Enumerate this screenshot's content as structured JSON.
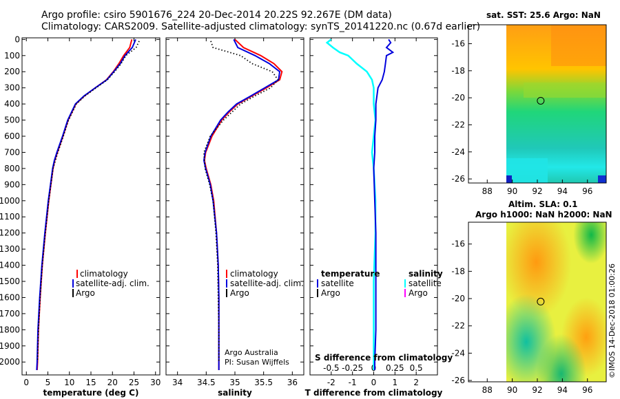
{
  "header": {
    "line1": "Argo profile: csiro 5901676_224 20-Dec-2014 20.22S 92.267E (DM data)",
    "line2": "Climatology: CARS2009. Satellite-adjusted climatology: synTS_20141220.nc (0.67d earlier)"
  },
  "colors": {
    "climatology": "#ff0000",
    "satellite": "#0000dd",
    "argo": "#000000",
    "satellite_s": "#00ffff",
    "argo_s": "#ff00ff"
  },
  "chart_data": [
    {
      "type": "line",
      "name": "temperature",
      "xlabel": "temperature (deg C)",
      "xlim": [
        -1,
        31
      ],
      "xticks": [
        0,
        5,
        10,
        15,
        20,
        25,
        30
      ],
      "ylim": [
        2080,
        -10
      ],
      "yticks": [
        0,
        100,
        200,
        300,
        400,
        500,
        600,
        700,
        800,
        900,
        1000,
        1100,
        1200,
        1300,
        1400,
        1500,
        1600,
        1700,
        1800,
        1900,
        2000
      ],
      "legend": [
        "climatology",
        "satellite-adj. clim.",
        "Argo"
      ],
      "series": [
        {
          "name": "climatology",
          "depth": [
            0,
            50,
            100,
            150,
            200,
            250,
            300,
            350,
            400,
            500,
            600,
            700,
            750,
            800,
            900,
            1000,
            1200,
            1400,
            1600,
            1800,
            2000,
            2050
          ],
          "values": [
            24.5,
            24.0,
            22.6,
            21.5,
            20.2,
            18.6,
            16.0,
            13.5,
            11.5,
            9.7,
            8.5,
            7.2,
            6.6,
            6.2,
            5.7,
            5.2,
            4.4,
            3.7,
            3.2,
            2.8,
            2.6,
            2.5
          ]
        },
        {
          "name": "satellite-adj. clim.",
          "depth": [
            0,
            50,
            100,
            150,
            200,
            250,
            300,
            350,
            400,
            500,
            600,
            700,
            750,
            800,
            900,
            1000,
            1200,
            1400,
            1600,
            1800,
            2000,
            2050
          ],
          "values": [
            25.4,
            24.6,
            22.9,
            21.8,
            20.3,
            18.7,
            16.0,
            13.4,
            11.4,
            9.6,
            8.4,
            7.1,
            6.5,
            6.1,
            5.6,
            5.1,
            4.3,
            3.6,
            3.1,
            2.7,
            2.5,
            2.4
          ]
        },
        {
          "name": "Argo",
          "depth": [
            10,
            50,
            100,
            150,
            200,
            250,
            300,
            350,
            400,
            500,
            600,
            700,
            800,
            900,
            1000,
            1200,
            1400,
            1600,
            1800,
            2000
          ],
          "values": [
            26.2,
            25.5,
            23.1,
            22.0,
            20.5,
            18.8,
            16.2,
            13.6,
            11.6,
            9.8,
            8.6,
            7.3,
            6.2,
            5.7,
            5.2,
            4.4,
            3.7,
            3.2,
            2.8,
            2.6
          ]
        }
      ]
    },
    {
      "type": "line",
      "name": "salinity",
      "xlabel": "salinity",
      "xlim": [
        33.8,
        36.2
      ],
      "xticks": [
        34,
        34.5,
        35,
        35.5,
        36
      ],
      "xticklabels": [
        "34",
        "34.5",
        "35",
        "35.5",
        "36"
      ],
      "ylim": [
        2080,
        -10
      ],
      "legend": [
        "climatology",
        "satellite-adj. clim.",
        "Argo"
      ],
      "series": [
        {
          "name": "climatology",
          "depth": [
            0,
            50,
            100,
            150,
            200,
            250,
            300,
            350,
            400,
            450,
            500,
            600,
            700,
            750,
            800,
            900,
            1000,
            1200,
            1400,
            1600,
            1800,
            2000,
            2050
          ],
          "values": [
            35.0,
            35.15,
            35.45,
            35.68,
            35.82,
            35.78,
            35.55,
            35.3,
            35.05,
            34.9,
            34.77,
            34.6,
            34.49,
            34.47,
            34.5,
            34.58,
            34.63,
            34.68,
            34.71,
            34.72,
            34.72,
            34.72,
            34.72
          ]
        },
        {
          "name": "satellite-adj. clim.",
          "depth": [
            0,
            50,
            100,
            150,
            200,
            250,
            300,
            350,
            400,
            450,
            500,
            600,
            700,
            750,
            800,
            900,
            1000,
            1200,
            1400,
            1600,
            1800,
            2000,
            2050
          ],
          "values": [
            34.98,
            35.05,
            35.35,
            35.6,
            35.78,
            35.76,
            35.52,
            35.28,
            35.03,
            34.88,
            34.75,
            34.58,
            34.48,
            34.46,
            34.49,
            34.57,
            34.62,
            34.68,
            34.71,
            34.72,
            34.72,
            34.72,
            34.72
          ]
        },
        {
          "name": "Argo",
          "depth": [
            10,
            50,
            100,
            150,
            200,
            250,
            300,
            350,
            400,
            500,
            600,
            700,
            800,
            900,
            1000,
            1200,
            1400,
            1600,
            1800,
            2000
          ],
          "values": [
            34.58,
            34.62,
            35.1,
            35.3,
            35.65,
            35.75,
            35.62,
            35.35,
            35.1,
            34.8,
            34.57,
            34.46,
            34.48,
            34.56,
            34.62,
            34.67,
            34.7,
            34.71,
            34.72,
            34.72
          ]
        }
      ],
      "credit1": "Argo Australia",
      "credit2": "PI: Susan Wijffels"
    },
    {
      "type": "line",
      "name": "differences",
      "xlabel": "T difference from climatology",
      "xlabel_top": "S difference from climatology",
      "xlim": [
        -3,
        3
      ],
      "xticks": [
        -2,
        -1,
        0,
        1,
        2
      ],
      "top_ticks": [
        -0.5,
        -0.25,
        0,
        0.25,
        0.5
      ],
      "top_ticklabels": [
        "-0.5",
        "-0.25",
        "0",
        "0.25",
        "0.5"
      ],
      "ylim": [
        2080,
        -10
      ],
      "legend_left_title": "temperature",
      "legend_right_title": "salinity",
      "legend_left": [
        "satellite",
        "Argo"
      ],
      "legend_right": [
        "satellite",
        "Argo"
      ],
      "series": [
        {
          "name": "T satellite",
          "depth": [
            0,
            20,
            50,
            80,
            100,
            150,
            200,
            250,
            300,
            400,
            500,
            600,
            700,
            800,
            1000,
            1200,
            1500,
            1800,
            2000,
            2050
          ],
          "values": [
            0.7,
            0.8,
            0.6,
            0.9,
            0.6,
            0.55,
            0.5,
            0.4,
            0.2,
            0.1,
            0.1,
            0.05,
            0.05,
            0.0,
            0.05,
            0.1,
            0.1,
            0.1,
            0.05,
            0.05
          ]
        },
        {
          "name": "S satellite",
          "depth": [
            0,
            20,
            50,
            80,
            100,
            150,
            200,
            250,
            300,
            400,
            500,
            600,
            700,
            800,
            1000,
            1200,
            1500,
            1800,
            2000,
            2050
          ],
          "values": [
            -0.5,
            -0.55,
            -0.48,
            -0.4,
            -0.3,
            -0.2,
            -0.08,
            -0.02,
            0.0,
            0.0,
            0.02,
            0.0,
            -0.02,
            0.0,
            0.02,
            0.02,
            0.0,
            0.0,
            0.0,
            0.0
          ]
        }
      ]
    },
    {
      "type": "heatmap",
      "name": "sst_map",
      "title": "sat. SST: 25.6 Argo: NaN",
      "xlim": [
        86.5,
        97.5
      ],
      "ylim": [
        -26.3,
        -14.6
      ],
      "xticks": [
        88,
        90,
        92,
        94,
        96
      ],
      "yticks": [
        -16,
        -18,
        -20,
        -22,
        -24,
        -26
      ],
      "argo_position": [
        92.267,
        -20.22
      ]
    },
    {
      "type": "heatmap",
      "name": "sla_map",
      "title1": "Altim. SLA: 0.1",
      "title2": "Argo h1000: NaN h2000: NaN",
      "xlim": [
        86.5,
        97.5
      ],
      "ylim": [
        -26.1,
        -14.4
      ],
      "xticks": [
        88,
        90,
        92,
        94,
        96
      ],
      "yticks": [
        -16,
        -18,
        -20,
        -22,
        -24,
        -26
      ],
      "argo_position": [
        92.267,
        -20.22
      ]
    }
  ],
  "footer": {
    "imos": "©IMOS 14-Dec-2018 01:00:26"
  }
}
